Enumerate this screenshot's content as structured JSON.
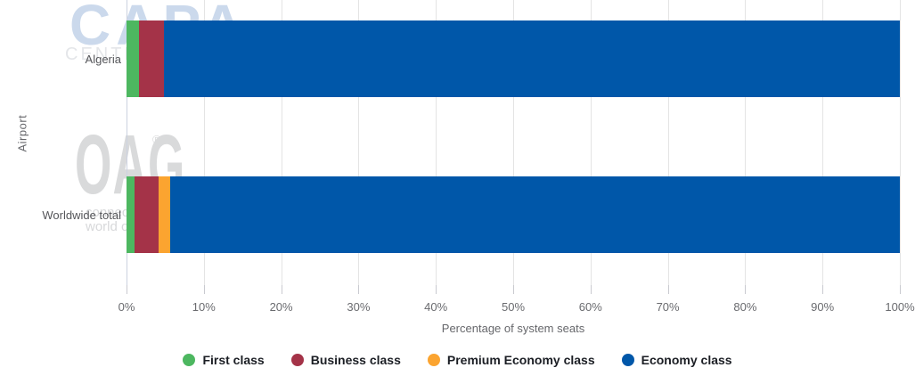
{
  "watermarks": {
    "capa": {
      "logo": "CAPA",
      "subtext": "CENTRE FOR AVIATION"
    },
    "oag": {
      "logo": "OAG",
      "registered_mark": "®",
      "tagline_line1": "connecting the",
      "tagline_line2": "world of travel"
    }
  },
  "chart_data": {
    "type": "bar",
    "orientation": "horizontal",
    "stacked": true,
    "title": "",
    "xlabel": "Percentage of system seats",
    "ylabel": "Airport",
    "xlim": [
      0,
      100
    ],
    "grid": true,
    "legend_position": "bottom",
    "categories": [
      "Algeria",
      "Worldwide total"
    ],
    "tick_values": [
      0,
      10,
      20,
      30,
      40,
      50,
      60,
      70,
      80,
      90,
      100
    ],
    "tick_labels": [
      "0%",
      "10%",
      "20%",
      "30%",
      "40%",
      "50%",
      "60%",
      "70%",
      "80%",
      "90%",
      "100%"
    ],
    "series": [
      {
        "name": "First class",
        "color": "#4db760",
        "values": [
          1.6,
          1.0
        ]
      },
      {
        "name": "Business class",
        "color": "#a43348",
        "values": [
          3.2,
          3.1
        ]
      },
      {
        "name": "Premium Economy class",
        "color": "#fba430",
        "values": [
          0,
          1.5
        ]
      },
      {
        "name": "Economy class",
        "color": "#0057a9",
        "values": [
          95.2,
          94.4
        ]
      }
    ]
  }
}
